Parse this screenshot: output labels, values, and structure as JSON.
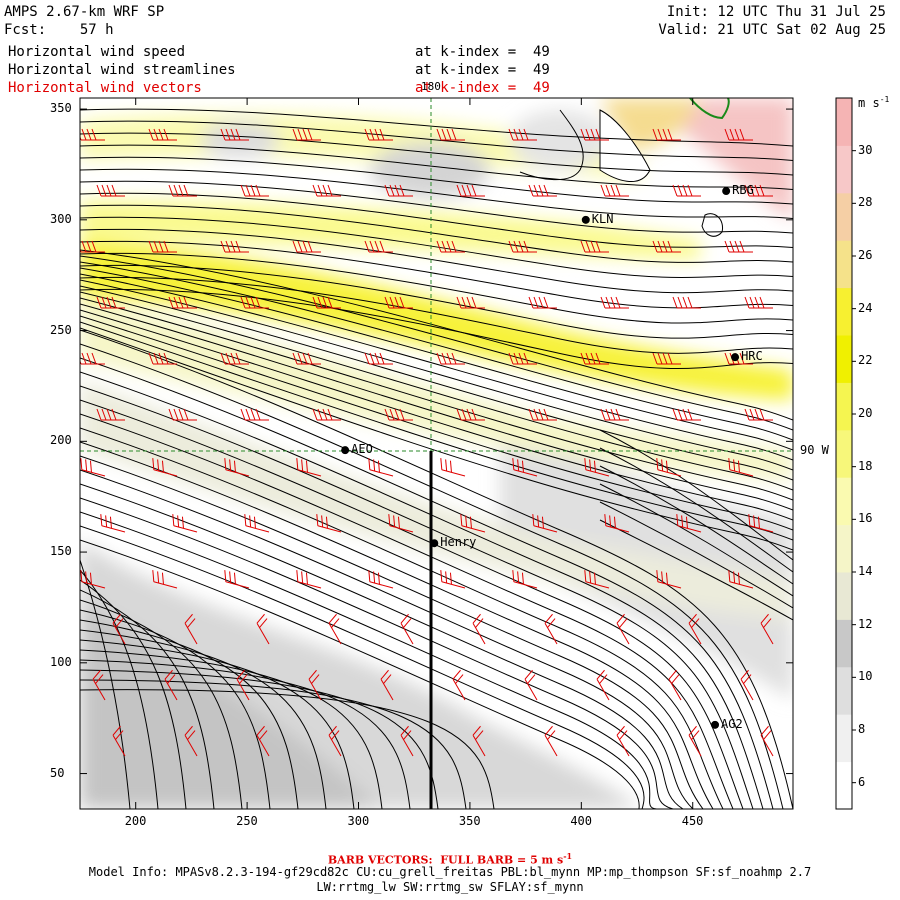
{
  "header": {
    "title_line1": "AMPS 2.67-km WRF SP",
    "title_line2": "Fcst:    57 h",
    "init": "Init: 12 UTC Thu 31 Jul 25",
    "valid": "Valid: 21 UTC Sat 02 Aug 25"
  },
  "fields": [
    {
      "name": "Horizontal wind speed",
      "level": "at k-index =  49",
      "color": "#000000"
    },
    {
      "name": "Horizontal wind streamlines",
      "level": "at k-index =  49",
      "color": "#000000"
    },
    {
      "name": "Horizontal wind vectors",
      "level": "at k-index =  49",
      "color": "#e00000"
    }
  ],
  "map": {
    "x_ticks": [
      "200",
      "250",
      "300",
      "350",
      "400",
      "450"
    ],
    "y_ticks": [
      "350",
      "300",
      "250",
      "200",
      "150",
      "100",
      "50"
    ],
    "meridian_label": "180",
    "latitude_label": "90 W",
    "stations": [
      {
        "label": "RBG",
        "gx": 465,
        "gy": 313
      },
      {
        "label": "KLN",
        "gx": 402,
        "gy": 300
      },
      {
        "label": "HRC",
        "gx": 469,
        "gy": 238
      },
      {
        "label": "AEO",
        "gx": 294,
        "gy": 196
      },
      {
        "label": "Henry",
        "gx": 334,
        "gy": 154
      },
      {
        "label": "AG2",
        "gx": 460,
        "gy": 72
      }
    ]
  },
  "colorbar": {
    "unit": "m s",
    "unit_exp": "-1",
    "labels": [
      "30",
      "28",
      "26",
      "24",
      "22",
      "20",
      "18",
      "16",
      "14",
      "12",
      "10",
      "8",
      "6"
    ],
    "colors": [
      "#ffffff",
      "#f0f0f0",
      "#dedede",
      "#c8c8c8",
      "#e8e8d4",
      "#f5f5c8",
      "#fafab0",
      "#f7f77a",
      "#f5f550",
      "#f0f000",
      "#f7f030",
      "#f5e28a",
      "#f5cfa5",
      "#f7c8c8",
      "#f5b4b4"
    ]
  },
  "footer": {
    "barb_note": "BARB VECTORS:  FULL BARB = 5 m s",
    "barb_exp": "-1",
    "model_info": "Model Info: MPASv8.2.3-194-gf29cd82c CU:cu_grell_freitas PBL:bl_mynn MP:mp_thompson SF:sf_noahmp 2.7",
    "model_info2": "LW:rrtmg_lw SW:rrtmg_sw SFLAY:sf_mynn"
  }
}
